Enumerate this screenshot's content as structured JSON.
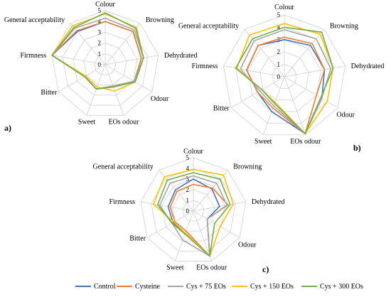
{
  "chart_data": [
    {
      "type": "radar",
      "panel_label": "a)",
      "axes": [
        "Colour",
        "Browning",
        "Dehydrated",
        "Odour",
        "EOs odour",
        "Sweet",
        "Bitter",
        "Firmness",
        "General acceptability"
      ],
      "rlim": [
        0,
        5
      ],
      "ticks": [
        "0",
        "1",
        "2",
        "3",
        "4",
        "5"
      ],
      "grid": true,
      "series": [
        {
          "name": "Control",
          "values": [
            4,
            4,
            3.4,
            3.1,
            2.1,
            2.4,
            2.2,
            5,
            4
          ],
          "color": "#4472C4"
        },
        {
          "name": "Cysteine",
          "values": [
            4,
            4,
            3.4,
            3.1,
            2.1,
            2.4,
            2.2,
            5,
            4.1
          ],
          "color": "#ED7D31"
        },
        {
          "name": "Cys + 75 EOs",
          "values": [
            4.3,
            4.2,
            3.6,
            3.1,
            2.1,
            2.4,
            2.2,
            5,
            4.4
          ],
          "color": "#A5A5A5"
        },
        {
          "name": "Cys + 150 EOs",
          "values": [
            4.7,
            4.5,
            3.6,
            3.2,
            2.6,
            2.2,
            2.1,
            5,
            4.7
          ],
          "color": "#FFC000"
        },
        {
          "name": "Cys + 300 EOs",
          "values": [
            4.8,
            4.4,
            3.6,
            3.2,
            2.2,
            2.4,
            2.2,
            5,
            4.5
          ],
          "color": "#70AD47"
        }
      ]
    },
    {
      "type": "radar",
      "panel_label": "b)",
      "axes": [
        "Colour",
        "Browning",
        "Dehydrated",
        "Odour",
        "EOs odour",
        "Sweet",
        "Bitter",
        "Firmness",
        "General acceptability"
      ],
      "rlim": [
        0,
        5
      ],
      "ticks": [
        "0",
        "1",
        "2",
        "3",
        "4",
        "5"
      ],
      "grid": true,
      "series": [
        {
          "name": "Control",
          "values": [
            3,
            3.3,
            3.3,
            3.5,
            4.9,
            3,
            2.5,
            3.1,
            3.3
          ],
          "color": "#4472C4"
        },
        {
          "name": "Cysteine",
          "values": [
            3.2,
            3.5,
            3.3,
            3,
            4.9,
            2.7,
            2.5,
            3.1,
            3.3
          ],
          "color": "#ED7D31"
        },
        {
          "name": "Cys + 75 EOs",
          "values": [
            3.8,
            4,
            3.8,
            3.5,
            4.9,
            2.5,
            2.3,
            3.6,
            3.8
          ],
          "color": "#A5A5A5"
        },
        {
          "name": "Cys + 150 EOs",
          "values": [
            4.3,
            4.5,
            4,
            4,
            4.9,
            2.2,
            2.1,
            3.9,
            4.4
          ],
          "color": "#FFC000"
        },
        {
          "name": "Cys + 300 EOs",
          "values": [
            4,
            4.7,
            4,
            3.4,
            4.9,
            2.3,
            2.1,
            4,
            4
          ],
          "color": "#70AD47"
        }
      ]
    },
    {
      "type": "radar",
      "panel_label": "c)",
      "axes": [
        "Colour",
        "Browning",
        "Dehydrated",
        "Odour",
        "EOs odour",
        "Sweet",
        "Bitter",
        "Firmness",
        "General acceptability"
      ],
      "rlim": [
        0,
        5
      ],
      "ticks": [
        "0",
        "1",
        "2",
        "3",
        "4",
        "5"
      ],
      "grid": true,
      "series": [
        {
          "name": "Control",
          "values": [
            3,
            2.7,
            2.5,
            1.5,
            4.5,
            2.2,
            2.2,
            2.4,
            2.6
          ],
          "color": "#4472C4"
        },
        {
          "name": "Cysteine",
          "values": [
            2.5,
            2.8,
            3.3,
            1.5,
            4.5,
            2,
            2,
            2.2,
            2.4
          ],
          "color": "#ED7D31"
        },
        {
          "name": "Cys + 75 EOs",
          "values": [
            3.3,
            3.4,
            3.2,
            1.5,
            4.5,
            2.9,
            2.3,
            3.2,
            3.4
          ],
          "color": "#A5A5A5"
        },
        {
          "name": "Cys + 150 EOs",
          "values": [
            3.9,
            4.4,
            3.8,
            2.9,
            4.5,
            2.2,
            2.1,
            3.8,
            4.2
          ],
          "color": "#FFC000"
        },
        {
          "name": "Cys + 300 EOs",
          "values": [
            3.6,
            3.9,
            3.5,
            2.3,
            4.5,
            2.3,
            2.3,
            3.4,
            3.8
          ],
          "color": "#70AD47"
        }
      ]
    }
  ],
  "legend": {
    "placement": "bottom",
    "items": [
      "Control",
      "Cysteine",
      "Cys + 75 EOs",
      "Cys + 150 EOs",
      "Cys + 300 EOs"
    ]
  }
}
